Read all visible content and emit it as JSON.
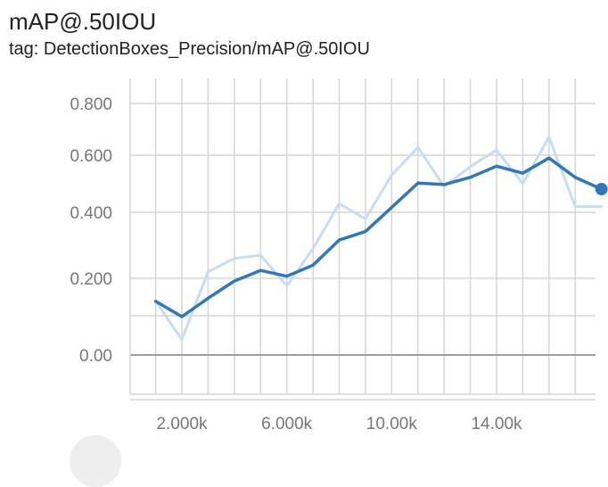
{
  "header": {
    "title": "mAP@.50IOU",
    "tag": "tag: DetectionBoxes_Precision/mAP@.50IOU"
  },
  "colors": {
    "smoothed_line": "#3277b8",
    "raw_line": "#c8ddef",
    "grid": "#d6d6d6",
    "zero_line": "#9e9e9e",
    "tick_text": "#777777"
  },
  "chart_data": {
    "type": "line",
    "title": "mAP@.50IOU",
    "xlabel": "",
    "ylabel": "",
    "xlim": [
      300,
      18000
    ],
    "ylim": [
      -0.12,
      0.88
    ],
    "x_ticks": [
      2000,
      6000,
      10000,
      14000
    ],
    "x_tick_labels": [
      "2.000k",
      "6.000k",
      "10.00k",
      "14.00k"
    ],
    "y_ticks": [
      0.0,
      0.2,
      0.4,
      0.6,
      0.8
    ],
    "y_tick_labels": [
      "0.00",
      "0.200",
      "0.400",
      "0.600",
      "0.800"
    ],
    "grid": true,
    "series": [
      {
        "role": "raw",
        "x": [
          1000,
          2000,
          3000,
          4000,
          5000,
          6000,
          7000,
          8000,
          9000,
          10000,
          11000,
          12000,
          13000,
          14000,
          15000,
          16000,
          17000,
          18000
        ],
        "values": [
          0.14,
          0.04,
          0.22,
          0.26,
          0.27,
          0.18,
          0.29,
          0.43,
          0.38,
          0.53,
          0.63,
          0.49,
          0.56,
          0.62,
          0.5,
          0.67,
          0.42,
          0.42
        ]
      }
    ]
  }
}
